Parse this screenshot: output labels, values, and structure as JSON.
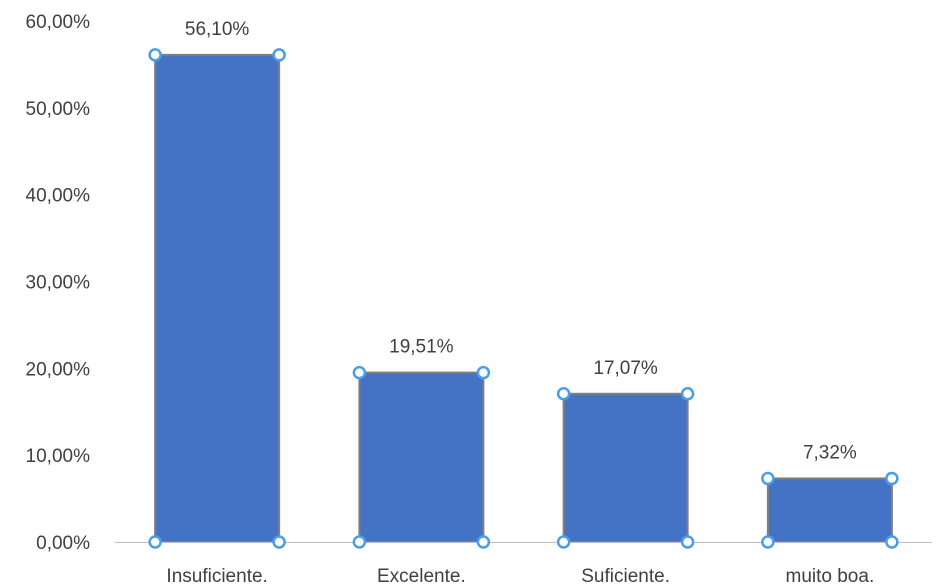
{
  "chart_data": {
    "type": "bar",
    "title": "",
    "xlabel": "",
    "ylabel": "",
    "categories": [
      "Insuficiente.",
      "Excelente.",
      "Suficiente.",
      "muito boa."
    ],
    "values": [
      56.1,
      19.51,
      17.07,
      7.32
    ],
    "data_labels": [
      "56,10%",
      "19,51%",
      "17,07%",
      "7,32%"
    ],
    "ylim": [
      0,
      60
    ],
    "y_ticks": [
      0,
      10,
      20,
      30,
      40,
      50,
      60
    ],
    "y_tick_labels": [
      "0,00%",
      "10,00%",
      "20,00%",
      "30,00%",
      "40,00%",
      "50,00%",
      "60,00%"
    ],
    "grid": false,
    "legend": "none",
    "colors": {
      "bar_fill": "#4472C4",
      "bar_stroke": "#7F7F7F",
      "handle_stroke": "#4A9EE8",
      "axis_line": "#BFBFBF",
      "text": "#404040"
    },
    "selected_series_handles": true
  }
}
